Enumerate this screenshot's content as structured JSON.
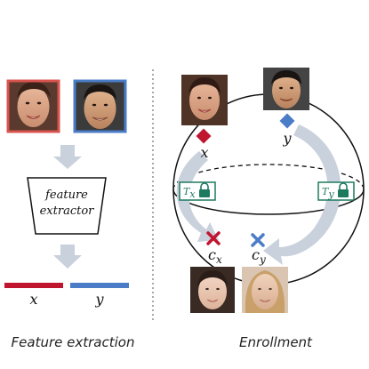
{
  "captions": {
    "left": "Feature extraction",
    "right": "Enrollment"
  },
  "extractor": {
    "line1": "feature",
    "line2": "extractor"
  },
  "left_panel": {
    "face_x_border": "#d9534f",
    "face_y_border": "#4a7cc7",
    "bar_x_label": "x",
    "bar_y_label": "y",
    "bar_x_color": "#c0152f",
    "bar_y_color": "#4a7cc7"
  },
  "right_panel": {
    "point_x_label": "x",
    "point_y_label": "y",
    "template_x_label": "T",
    "template_x_sub": "x",
    "template_y_label": "T",
    "template_y_sub": "y",
    "center_x_label": "c",
    "center_x_sub": "x",
    "center_y_label": "c",
    "center_y_sub": "y",
    "point_x_color": "#c0152f",
    "point_y_color": "#4a7cc7",
    "lock_color": "#1e7a5e",
    "arrow_color": "#c9d1dc"
  }
}
